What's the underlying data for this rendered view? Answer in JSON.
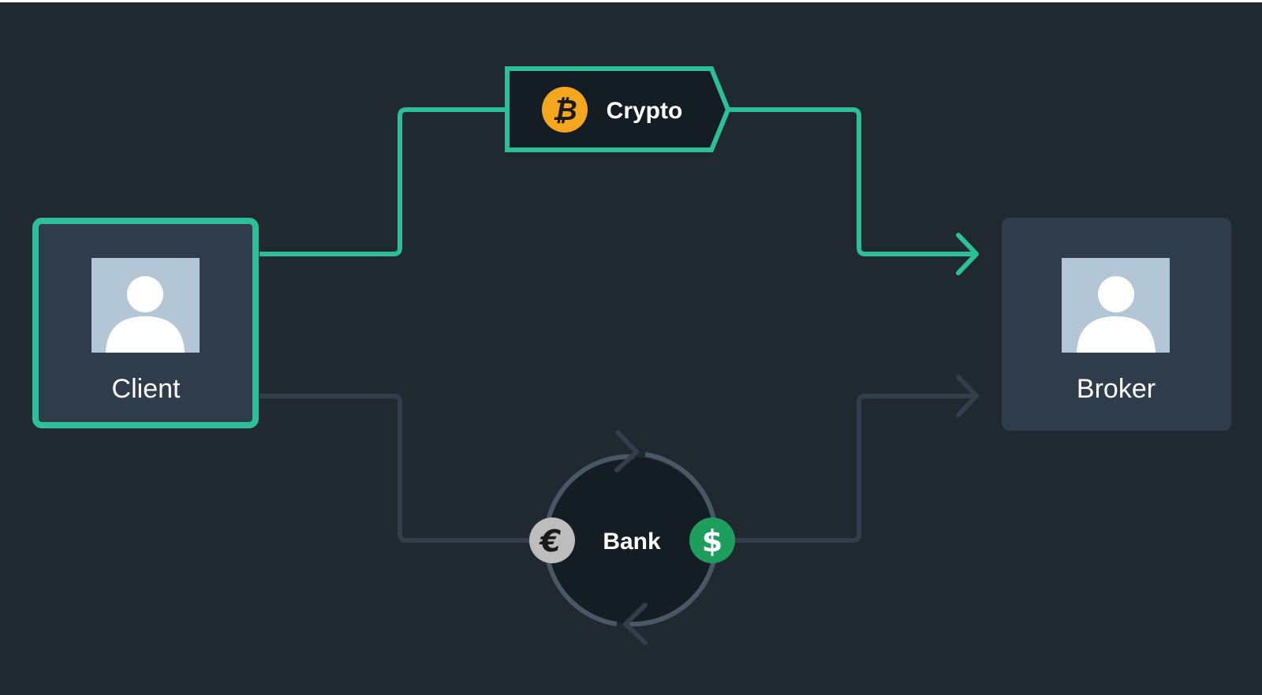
{
  "nodes": {
    "client": {
      "label": "Client",
      "highlighted": true
    },
    "broker": {
      "label": "Broker",
      "highlighted": false
    },
    "crypto": {
      "label": "Crypto",
      "icon": "bitcoin-icon"
    },
    "bank": {
      "label": "Bank",
      "left_icon": "euro-icon",
      "right_icon": "dollar-icon"
    }
  },
  "edges": [
    {
      "from": "client",
      "to": "crypto",
      "active": true
    },
    {
      "from": "crypto",
      "to": "broker",
      "active": true
    },
    {
      "from": "client",
      "to": "bank",
      "active": false
    },
    {
      "from": "bank",
      "to": "broker",
      "active": false
    }
  ],
  "colors": {
    "background": "#212930",
    "active": "#2DBE9A",
    "inactive": "#323E4C",
    "node_fill": "#2F3C4B",
    "pill_fill": "#151D24",
    "avatar_bg": "#B3C6D6",
    "bitcoin": "#F5A61F",
    "euro": "#BDBDBD",
    "dollar": "#1E9E5C",
    "text": "#FFFFFF"
  }
}
